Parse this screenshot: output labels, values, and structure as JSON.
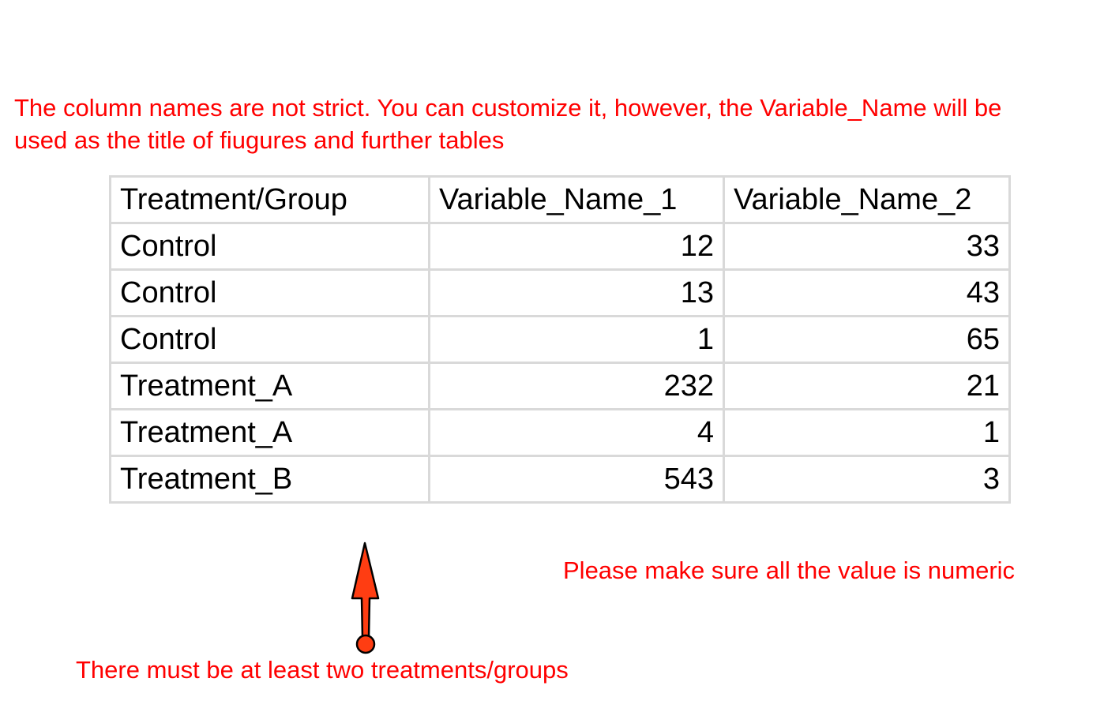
{
  "notes": {
    "column_names": "The column names are not strict. You can customize it, however, the Variable_Name will be",
    "column_names_line2": "used as the title of fiugures and further tables",
    "numeric": "Please make sure all the value is numeric",
    "groups": "There must be at least two treatments/groups"
  },
  "table": {
    "headers": [
      "Treatment/Group",
      "Variable_Name_1",
      "Variable_Name_2"
    ],
    "rows": [
      [
        "Control",
        "12",
        "33"
      ],
      [
        "Control",
        "13",
        "43"
      ],
      [
        "Control",
        "1",
        "65"
      ],
      [
        "Treatment_A",
        "232",
        "21"
      ],
      [
        "Treatment_A",
        "4",
        "1"
      ],
      [
        "Treatment_B",
        "543",
        "3"
      ]
    ]
  },
  "colors": {
    "annotation": "#ff0000",
    "arrow_fill": "#ff3d12",
    "grid": "#d9d9d9"
  },
  "icons": {
    "arrow": "up-arrow-icon"
  }
}
